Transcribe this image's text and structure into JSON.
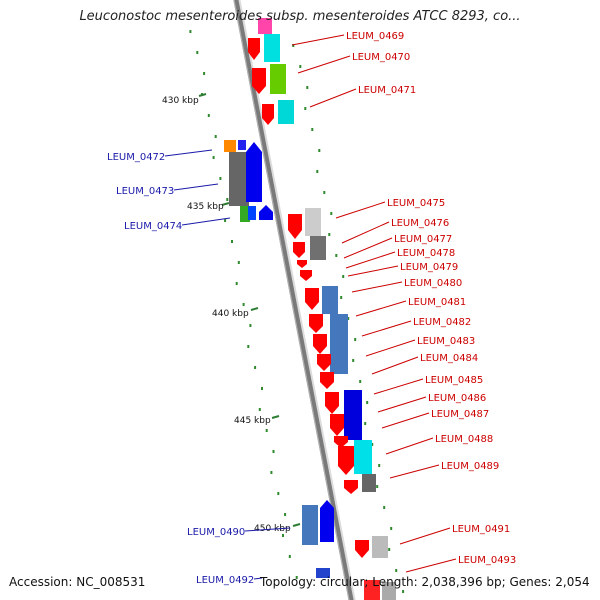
{
  "title": "Leuconostoc mesenteroides subsp. mesenteroides ATCC 8293, co...",
  "accession": "Accession: NC_008531",
  "summary": "Topology: circular; Length: 2,038,396 bp; Genes: 2,054",
  "ticks": [
    "430 kbp",
    "435 kbp",
    "440 kbp",
    "445 kbp",
    "450 kbp"
  ],
  "genes": [
    {
      "label": "LEUM_0469",
      "strand": "+"
    },
    {
      "label": "LEUM_0470",
      "strand": "+"
    },
    {
      "label": "LEUM_0471",
      "strand": "+"
    },
    {
      "label": "LEUM_0472",
      "strand": "-"
    },
    {
      "label": "LEUM_0473",
      "strand": "-"
    },
    {
      "label": "LEUM_0474",
      "strand": "-"
    },
    {
      "label": "LEUM_0475",
      "strand": "+"
    },
    {
      "label": "LEUM_0476",
      "strand": "+"
    },
    {
      "label": "LEUM_0477",
      "strand": "+"
    },
    {
      "label": "LEUM_0478",
      "strand": "+"
    },
    {
      "label": "LEUM_0479",
      "strand": "+"
    },
    {
      "label": "LEUM_0480",
      "strand": "+"
    },
    {
      "label": "LEUM_0481",
      "strand": "+"
    },
    {
      "label": "LEUM_0482",
      "strand": "+"
    },
    {
      "label": "LEUM_0483",
      "strand": "+"
    },
    {
      "label": "LEUM_0484",
      "strand": "+"
    },
    {
      "label": "LEUM_0485",
      "strand": "+"
    },
    {
      "label": "LEUM_0486",
      "strand": "+"
    },
    {
      "label": "LEUM_0487",
      "strand": "+"
    },
    {
      "label": "LEUM_0488",
      "strand": "+"
    },
    {
      "label": "LEUM_0489",
      "strand": "+"
    },
    {
      "label": "LEUM_0490",
      "strand": "-"
    },
    {
      "label": "LEUM_0491",
      "strand": "+"
    },
    {
      "label": "LEUM_0492",
      "strand": "-"
    },
    {
      "label": "LEUM_0493",
      "strand": "+"
    }
  ],
  "colors": {
    "backbone": "#808080",
    "forward_cds": "#ff0000",
    "reverse_cds": "#0000ff",
    "forward_label": "#cc0000",
    "reverse_label": "#1a1aaa",
    "tick": "#2e7d32",
    "dots": "#2e8b2e"
  }
}
